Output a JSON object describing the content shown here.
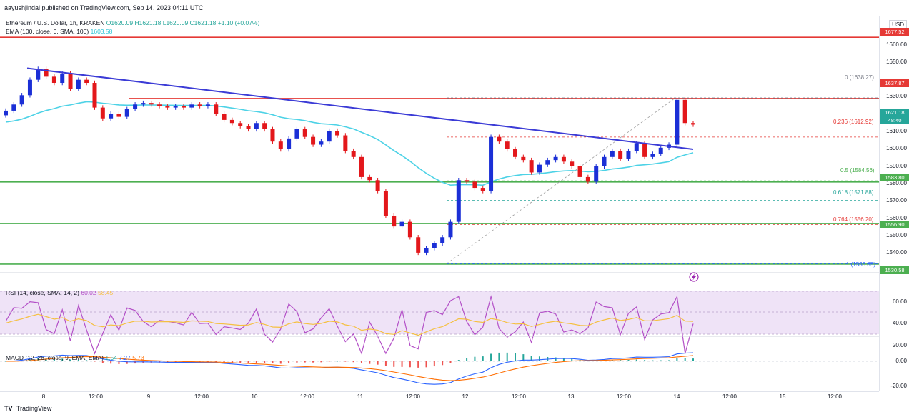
{
  "header": {
    "published": "aayushjindal published on TradingView.com, Sep 14, 2023 04:11 UTC"
  },
  "legend": {
    "symbol": "Ethereum / U.S. Dollar, 1h, KRAKEN",
    "ohlc": "O1620.09 H1621.18 L1620.09 C1621.18 +1.10 (+0.07%)",
    "ema_label": "EMA (100, close, 0, SMA, 100)",
    "ema_value": "1603.58"
  },
  "price_axis": {
    "currency": "USD",
    "ticks": [
      "1660.00",
      "1650.00",
      "1630.00",
      "1610.00",
      "1600.00",
      "1590.00",
      "1580.00",
      "1570.00",
      "1560.00",
      "1550.00",
      "1540.00"
    ],
    "badges": {
      "top_resistance": "1677.52",
      "resistance": "1637.87",
      "last_price": "1621.18",
      "countdown": "48:40",
      "support_1": "1583.80",
      "support_2": "1556.90",
      "support_3": "1530.58"
    }
  },
  "fib": {
    "f0": "0 (1638.27)",
    "f236": "0.236 (1612.92)",
    "f5": "0.5 (1584.56)",
    "f618": "0.618 (1571.88)",
    "f764": "0.764 (1556.20)",
    "f1": "1 (1530.85)"
  },
  "rsi": {
    "legend": "RSI (14, close, SMA, 14, 2)",
    "value": "60.02",
    "sma_value": "58.45",
    "ticks": [
      "60.00",
      "40.00",
      "20.00"
    ]
  },
  "macd": {
    "legend": "MACD (12, 26, close, 9, EMA, EMA)",
    "v1": "1.54",
    "v2": "7.27",
    "v3": "5.73",
    "ticks": [
      "0.00",
      "-20.00"
    ]
  },
  "time_axis": [
    "8",
    "12:00",
    "9",
    "12:00",
    "10",
    "12:00",
    "11",
    "12:00",
    "12",
    "12:00",
    "13",
    "12:00",
    "14",
    "12:00",
    "15",
    "12:00"
  ],
  "footer": "TradingView",
  "colors": {
    "up": "#1b2fd6",
    "down": "#e3171b",
    "ema": "#4dd2e6",
    "trendline": "#3b3bd6",
    "resistance": "#e53935",
    "support": "#4caf50",
    "rsi": "#b34fc7",
    "rsi_sma": "#f5c040",
    "rsi_band": "#efe3f7"
  },
  "chart_data": {
    "type": "candlestick",
    "title": "Ethereum / U.S. Dollar, 1h, KRAKEN",
    "ylim": [
      1525,
      1685
    ],
    "xlabels": [
      "8",
      "12:00",
      "9",
      "12:00",
      "10",
      "12:00",
      "11",
      "12:00",
      "12",
      "12:00",
      "13",
      "12:00",
      "14",
      "12:00",
      "15",
      "12:00"
    ],
    "close_path": [
      1630,
      1634,
      1640,
      1650,
      1657,
      1652,
      1648,
      1654,
      1644,
      1650,
      1648,
      1632,
      1625,
      1628,
      1626,
      1631,
      1634,
      1635,
      1634,
      1633,
      1632,
      1633,
      1632,
      1634,
      1633,
      1634,
      1628,
      1624,
      1622,
      1620,
      1618,
      1622,
      1618,
      1610,
      1605,
      1612,
      1618,
      1613,
      1608,
      1610,
      1617,
      1614,
      1604,
      1600,
      1587,
      1585,
      1578,
      1562,
      1555,
      1558,
      1548,
      1538,
      1541,
      1544,
      1548,
      1558,
      1585,
      1584,
      1580,
      1578,
      1613,
      1610,
      1605,
      1600,
      1598,
      1590,
      1595,
      1598,
      1600,
      1597,
      1594,
      1587,
      1584,
      1594,
      1600,
      1604,
      1599,
      1604,
      1609,
      1600,
      1602,
      1606,
      1608,
      1637,
      1622,
      1621
    ],
    "ema_100_level": 1603.58,
    "horizontal_levels": [
      1677.52,
      1637.87,
      1583.8,
      1556.9,
      1530.58
    ],
    "fibonacci": [
      {
        "ratio": 0,
        "price": 1638.27
      },
      {
        "ratio": 0.236,
        "price": 1612.92
      },
      {
        "ratio": 0.5,
        "price": 1584.56
      },
      {
        "ratio": 0.618,
        "price": 1571.88
      },
      {
        "ratio": 0.764,
        "price": 1556.2
      },
      {
        "ratio": 1,
        "price": 1530.85
      }
    ],
    "last_price": 1621.18,
    "rsi_last": 60.02,
    "rsi_sma_last": 58.45,
    "macd_last": [
      1.54,
      7.27,
      5.73
    ]
  }
}
